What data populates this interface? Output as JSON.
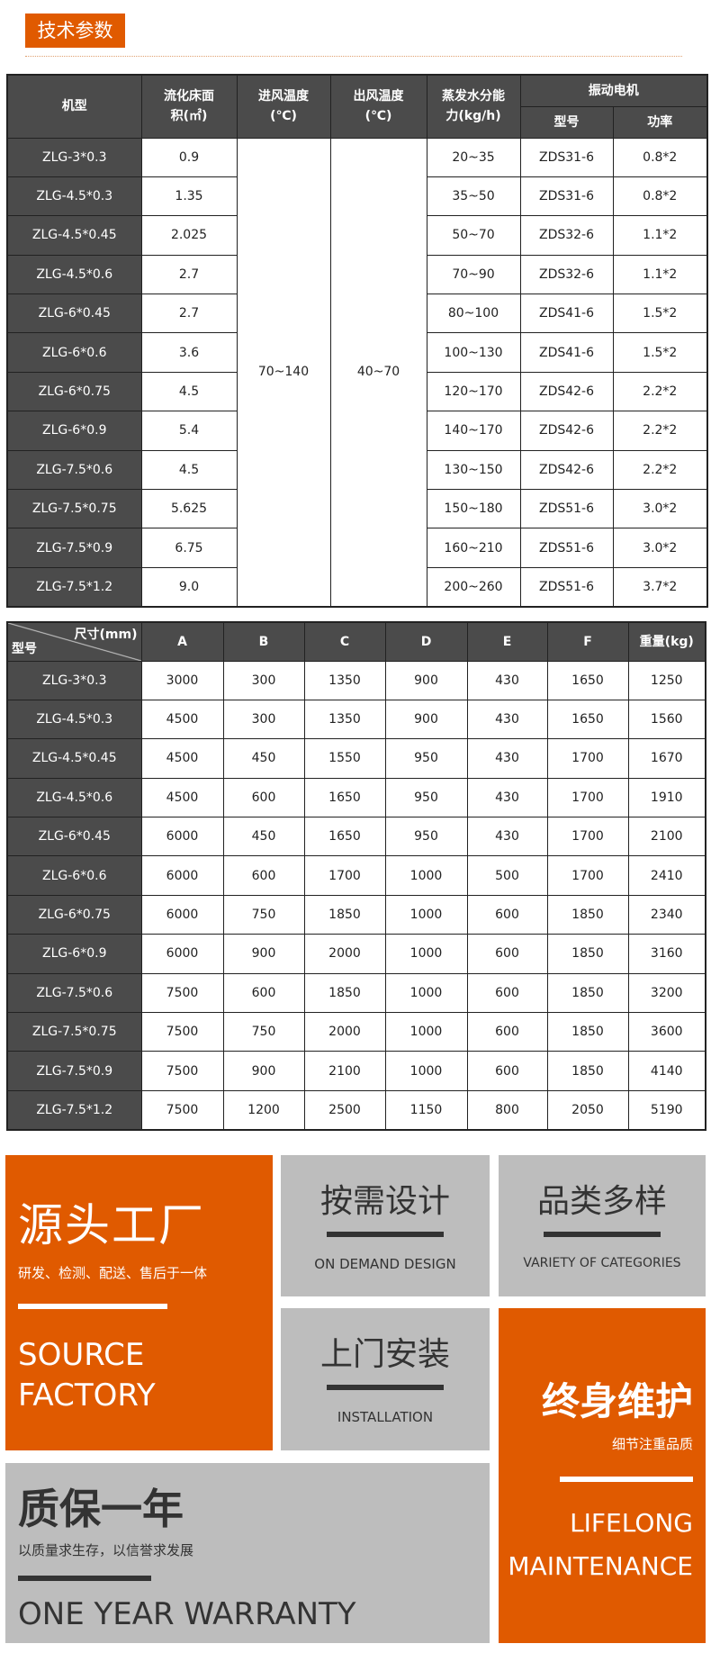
{
  "section_title": "技术参数",
  "table1": {
    "headers": {
      "model": "机型",
      "area": "流化床面积(㎡)",
      "inlet": "进风温度(℃)",
      "outlet": "出风温度(℃)",
      "evap": "蒸发水分能力(kg/h)",
      "motor": "振动电机",
      "motor_model": "型号",
      "motor_power": "功率"
    },
    "inlet_temp": "70~140",
    "outlet_temp": "40~70",
    "rows": [
      {
        "model": "ZLG-3*0.3",
        "area": "0.9",
        "evap": "20~35",
        "motor": "ZDS31-6",
        "power": "0.8*2"
      },
      {
        "model": "ZLG-4.5*0.3",
        "area": "1.35",
        "evap": "35~50",
        "motor": "ZDS31-6",
        "power": "0.8*2"
      },
      {
        "model": "ZLG-4.5*0.45",
        "area": "2.025",
        "evap": "50~70",
        "motor": "ZDS32-6",
        "power": "1.1*2"
      },
      {
        "model": "ZLG-4.5*0.6",
        "area": "2.7",
        "evap": "70~90",
        "motor": "ZDS32-6",
        "power": "1.1*2"
      },
      {
        "model": "ZLG-6*0.45",
        "area": "2.7",
        "evap": "80~100",
        "motor": "ZDS41-6",
        "power": "1.5*2"
      },
      {
        "model": "ZLG-6*0.6",
        "area": "3.6",
        "evap": "100~130",
        "motor": "ZDS41-6",
        "power": "1.5*2"
      },
      {
        "model": "ZLG-6*0.75",
        "area": "4.5",
        "evap": "120~170",
        "motor": "ZDS42-6",
        "power": "2.2*2"
      },
      {
        "model": "ZLG-6*0.9",
        "area": "5.4",
        "evap": "140~170",
        "motor": "ZDS42-6",
        "power": "2.2*2"
      },
      {
        "model": "ZLG-7.5*0.6",
        "area": "4.5",
        "evap": "130~150",
        "motor": "ZDS42-6",
        "power": "2.2*2"
      },
      {
        "model": "ZLG-7.5*0.75",
        "area": "5.625",
        "evap": "150~180",
        "motor": "ZDS51-6",
        "power": "3.0*2"
      },
      {
        "model": "ZLG-7.5*0.9",
        "area": "6.75",
        "evap": "160~210",
        "motor": "ZDS51-6",
        "power": "3.0*2"
      },
      {
        "model": "ZLG-7.5*1.2",
        "area": "9.0",
        "evap": "200~260",
        "motor": "ZDS51-6",
        "power": "3.7*2"
      }
    ]
  },
  "table2": {
    "corner_top": "尺寸(mm)",
    "corner_bottom": "型号",
    "headers": [
      "A",
      "B",
      "C",
      "D",
      "E",
      "F",
      "重量(kg)"
    ],
    "rows": [
      [
        "ZLG-3*0.3",
        "3000",
        "300",
        "1350",
        "900",
        "430",
        "1650",
        "1250"
      ],
      [
        "ZLG-4.5*0.3",
        "4500",
        "300",
        "1350",
        "900",
        "430",
        "1650",
        "1560"
      ],
      [
        "ZLG-4.5*0.45",
        "4500",
        "450",
        "1550",
        "950",
        "430",
        "1700",
        "1670"
      ],
      [
        "ZLG-4.5*0.6",
        "4500",
        "600",
        "1650",
        "950",
        "430",
        "1700",
        "1910"
      ],
      [
        "ZLG-6*0.45",
        "6000",
        "450",
        "1650",
        "950",
        "430",
        "1700",
        "2100"
      ],
      [
        "ZLG-6*0.6",
        "6000",
        "600",
        "1700",
        "1000",
        "500",
        "1700",
        "2410"
      ],
      [
        "ZLG-6*0.75",
        "6000",
        "750",
        "1850",
        "1000",
        "600",
        "1850",
        "2340"
      ],
      [
        "ZLG-6*0.9",
        "6000",
        "900",
        "2000",
        "1000",
        "600",
        "1850",
        "3160"
      ],
      [
        "ZLG-7.5*0.6",
        "7500",
        "600",
        "1850",
        "1000",
        "600",
        "1850",
        "3200"
      ],
      [
        "ZLG-7.5*0.75",
        "7500",
        "750",
        "2000",
        "1000",
        "600",
        "1850",
        "3600"
      ],
      [
        "ZLG-7.5*0.9",
        "7500",
        "900",
        "2100",
        "1000",
        "600",
        "1850",
        "4140"
      ],
      [
        "ZLG-7.5*1.2",
        "7500",
        "1200",
        "2500",
        "1150",
        "800",
        "2050",
        "5190"
      ]
    ]
  },
  "features": {
    "source": {
      "title": "源头工厂",
      "sub": "研发、检测、配送、售后于一体",
      "en1": "SOURCE",
      "en2": "FACTORY"
    },
    "design": {
      "title": "按需设计",
      "en": "ON DEMAND DESIGN"
    },
    "variety": {
      "title": "品类多样",
      "en": "VARIETY OF CATEGORIES"
    },
    "install": {
      "title": "上门安装",
      "en": "INSTALLATION"
    },
    "lifelong": {
      "title": "终身维护",
      "sub": "细节注重品质",
      "en1": "LIFELONG",
      "en2": "MAINTENANCE"
    },
    "warranty": {
      "title": "质保一年",
      "sub": "以质量求生存，以信誉求发展",
      "en": "ONE YEAR WARRANTY"
    }
  },
  "colors": {
    "orange": "#e05a00",
    "grey": "#bdbdbd",
    "header": "#4b4b4b"
  }
}
